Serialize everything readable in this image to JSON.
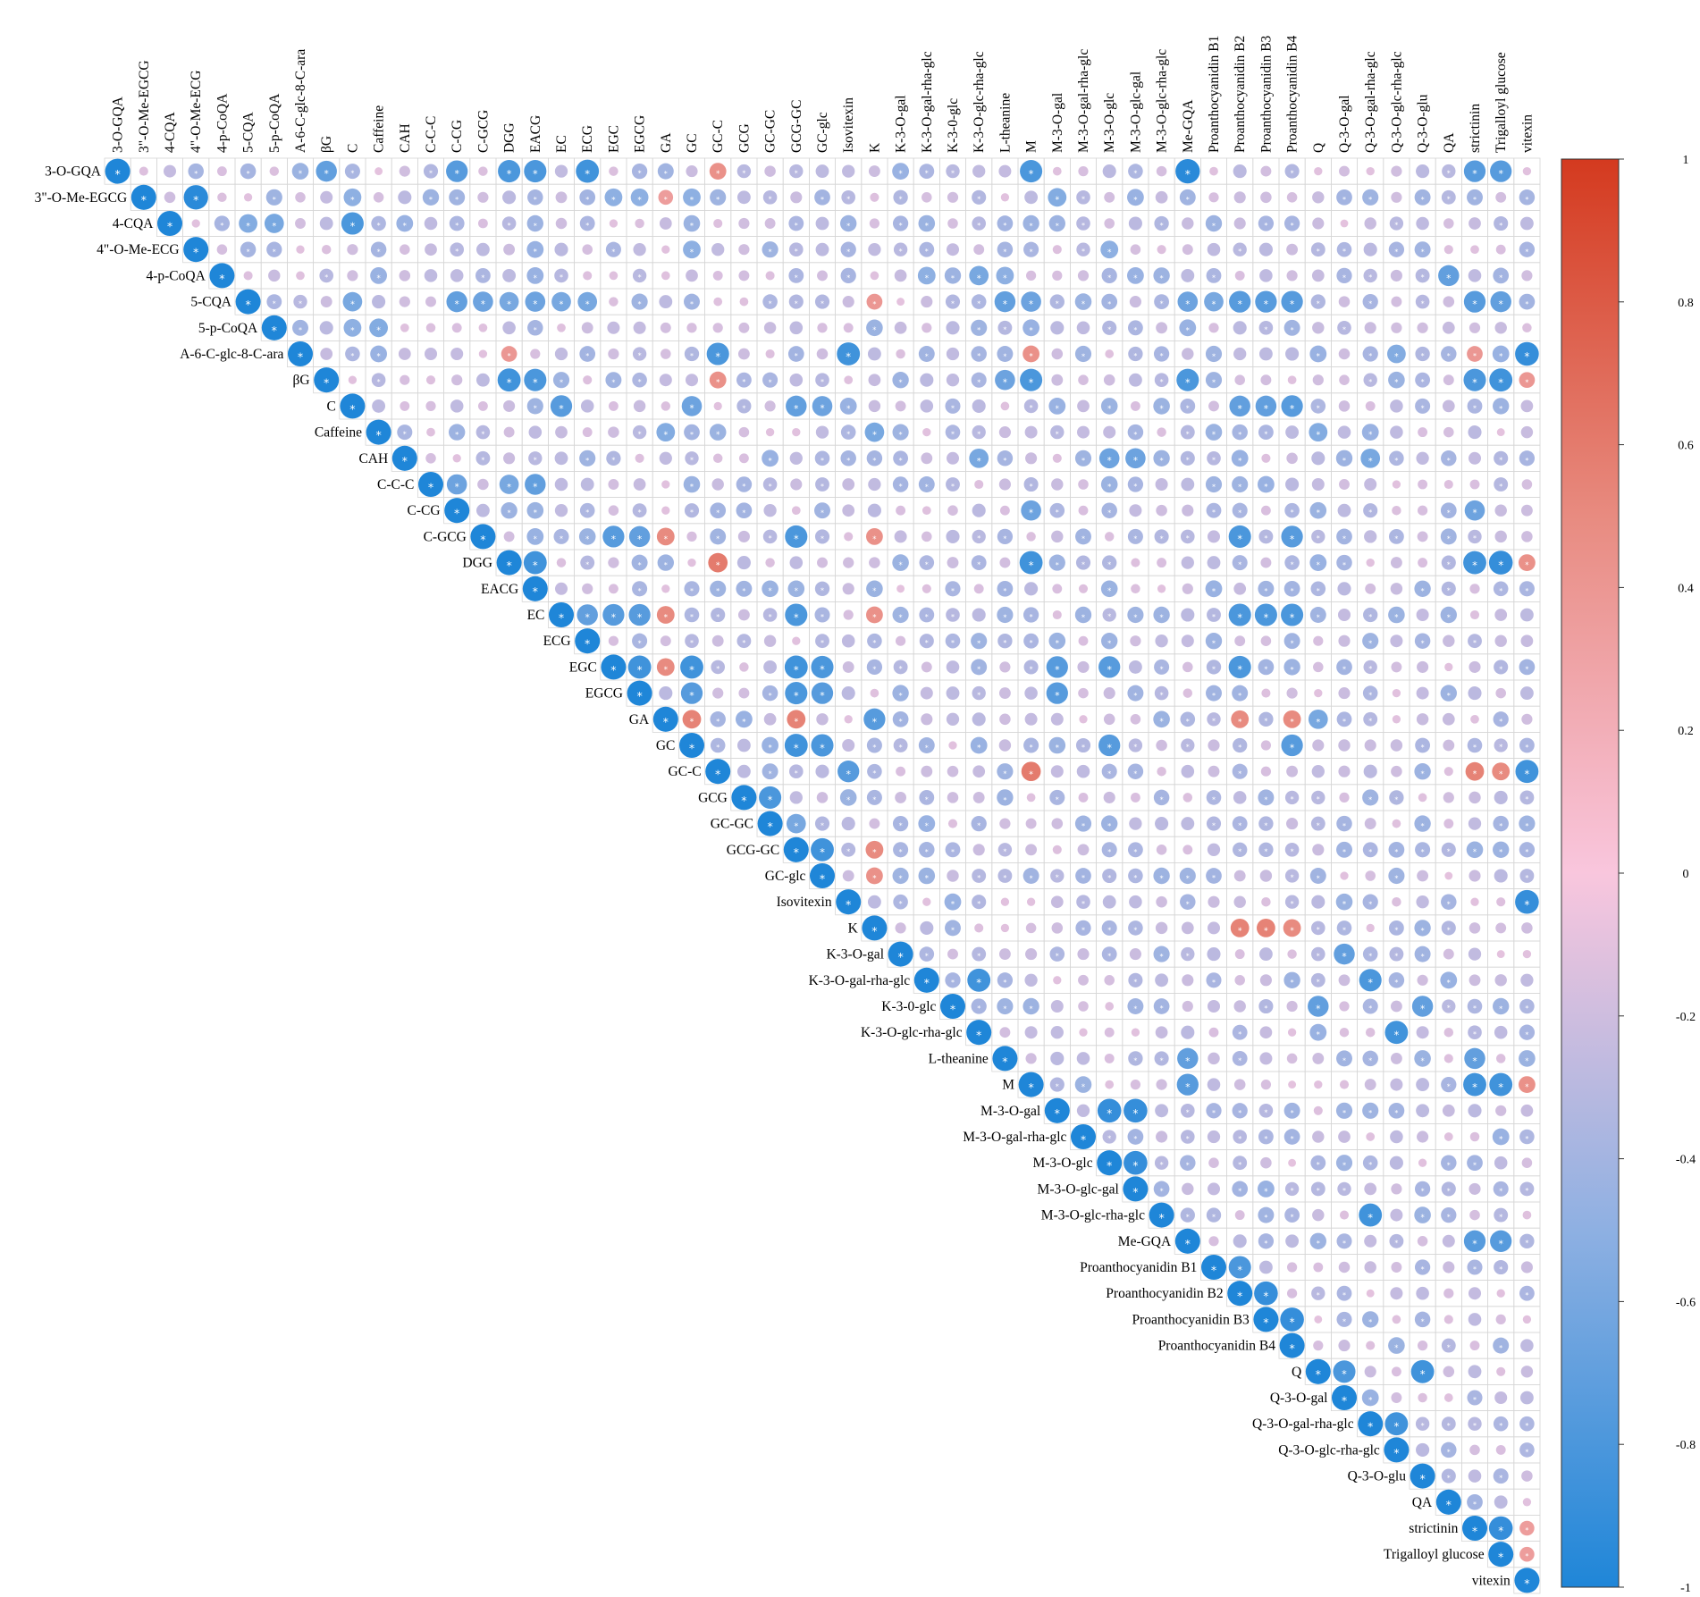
{
  "chart_data": {
    "type": "heatmap",
    "variant": "upper-triangle correlation circles",
    "variables": [
      "3-O-GQA",
      "3\"-O-Me-EGCG",
      "4-CQA",
      "4\"-O-Me-ECG",
      "4-p-CoQA",
      "5-CQA",
      "5-p-CoQA",
      "A-6-C-glc-8-C-ara",
      "βG",
      "C",
      "Caffeine",
      "CAH",
      "C-C-C",
      "C-CG",
      "C-GCG",
      "DGG",
      "EACG",
      "EC",
      "ECG",
      "EGC",
      "EGCG",
      "GA",
      "GC",
      "GC-C",
      "GCG",
      "GC-GC",
      "GCG-GC",
      "GC-glc",
      "Isovitexin",
      "K",
      "K-3-O-gal",
      "K-3-O-gal-rha-glc",
      "K-3-0-glc",
      "K-3-O-glc-rha-glc",
      "L-theanine",
      "M",
      "M-3-O-gal",
      "M-3-O-gal-rha-glc",
      "M-3-O-glc",
      "M-3-O-glc-gal",
      "M-3-O-glc-rha-glc",
      "Me-GQA",
      "Proanthocyanidin B1",
      "Proanthocyanidin B2",
      "Proanthocyanidin B3",
      "Proanthocyanidin B4",
      "Q",
      "Q-3-O-gal",
      "Q-3-O-gal-rha-glc",
      "Q-3-O-glc-rha-glc",
      "Q-3-O-glu",
      "QA",
      "strictinin",
      "Trigalloyl glucose",
      "vitexin"
    ],
    "colorbar": {
      "range": [
        -1,
        1
      ],
      "ticks": [
        "1",
        "0.8",
        "0.6",
        "0.4",
        "0.2",
        "0",
        "-0.2",
        "-0.4",
        "-0.6",
        "-0.8",
        "-1"
      ],
      "colors": [
        "#1f86d8",
        "#8eb0e2",
        "#f9c6dd",
        "#e88b80",
        "#d43a1f"
      ]
    },
    "significance_mark": "*",
    "diagonal_value": 1,
    "strong_pairs": [
      [
        "3-O-GQA",
        "C-CG",
        0.75
      ],
      [
        "3-O-GQA",
        "DGG",
        0.8
      ],
      [
        "3-O-GQA",
        "EACG",
        0.8
      ],
      [
        "3-O-GQA",
        "ECG",
        0.85
      ],
      [
        "3-O-GQA",
        "M",
        0.8
      ],
      [
        "3-O-GQA",
        "Me-GQA",
        0.95
      ],
      [
        "3-O-GQA",
        "strictinin",
        0.75
      ],
      [
        "3-O-GQA",
        "Trigalloyl glucose",
        0.75
      ],
      [
        "3-O-GQA",
        "βG",
        0.7
      ],
      [
        "3-O-GQA",
        "GC-C",
        -0.45
      ],
      [
        "3\"-O-Me-EGCG",
        "4\"-O-Me-ECG",
        0.95
      ],
      [
        "3\"-O-Me-EGCG",
        "C",
        0.5
      ],
      [
        "3\"-O-Me-EGCG",
        "EGC",
        0.5
      ],
      [
        "3\"-O-Me-EGCG",
        "EGCG",
        0.5
      ],
      [
        "3\"-O-Me-EGCG",
        "GC",
        0.5
      ],
      [
        "3\"-O-Me-EGCG",
        "M-3-O-gal",
        0.55
      ],
      [
        "3\"-O-Me-EGCG",
        "GA",
        -0.35
      ],
      [
        "4-CQA",
        "C",
        0.8
      ],
      [
        "4-CQA",
        "5-CQA",
        0.55
      ],
      [
        "4-CQA",
        "5-p-CoQA",
        0.6
      ],
      [
        "4\"-O-Me-ECG",
        "GC",
        0.5
      ],
      [
        "4\"-O-Me-ECG",
        "M-3-O-glc",
        0.5
      ],
      [
        "4-p-CoQA",
        "QA",
        0.7
      ],
      [
        "4-p-CoQA",
        "K-3-O-gal-rha-glc",
        0.5
      ],
      [
        "4-p-CoQA",
        "K-3-O-glc-rha-glc",
        0.6
      ],
      [
        "4-p-CoQA",
        "L-theanine",
        0.5
      ],
      [
        "5-CQA",
        "C",
        0.6
      ],
      [
        "5-CQA",
        "C-CG",
        0.7
      ],
      [
        "5-CQA",
        "C-GCG",
        0.65
      ],
      [
        "5-CQA",
        "DGG",
        0.6
      ],
      [
        "5-CQA",
        "EACG",
        0.65
      ],
      [
        "5-CQA",
        "EC",
        0.6
      ],
      [
        "5-CQA",
        "ECG",
        0.6
      ],
      [
        "5-CQA",
        "L-theanine",
        0.7
      ],
      [
        "5-CQA",
        "M",
        0.65
      ],
      [
        "5-CQA",
        "Me-GQA",
        0.65
      ],
      [
        "5-CQA",
        "Proanthocyanidin B1",
        0.6
      ],
      [
        "5-CQA",
        "Proanthocyanidin B2",
        0.75
      ],
      [
        "5-CQA",
        "Proanthocyanidin B3",
        0.75
      ],
      [
        "5-CQA",
        "Proanthocyanidin B4",
        0.75
      ],
      [
        "5-CQA",
        "strictinin",
        0.75
      ],
      [
        "5-CQA",
        "Trigalloyl glucose",
        0.7
      ],
      [
        "5-CQA",
        "K",
        -0.4
      ],
      [
        "5-p-CoQA",
        "C",
        0.5
      ],
      [
        "5-p-CoQA",
        "Caffeine",
        0.55
      ],
      [
        "A-6-C-glc-8-C-ara",
        "GC-C",
        0.8
      ],
      [
        "A-6-C-glc-8-C-ara",
        "Isovitexin",
        0.85
      ],
      [
        "A-6-C-glc-8-C-ara",
        "vitexin",
        0.9
      ],
      [
        "A-6-C-glc-8-C-ara",
        "Q-3-O-glc-rha-glc",
        0.55
      ],
      [
        "A-6-C-glc-8-C-ara",
        "M",
        -0.45
      ],
      [
        "A-6-C-glc-8-C-ara",
        "DGG",
        -0.4
      ],
      [
        "A-6-C-glc-8-C-ara",
        "strictinin",
        -0.4
      ],
      [
        "βG",
        "DGG",
        0.85
      ],
      [
        "βG",
        "EACG",
        0.8
      ],
      [
        "βG",
        "Me-GQA",
        0.8
      ],
      [
        "βG",
        "M",
        0.8
      ],
      [
        "βG",
        "L-theanine",
        0.65
      ],
      [
        "βG",
        "strictinin",
        0.8
      ],
      [
        "βG",
        "Trigalloyl glucose",
        0.85
      ],
      [
        "βG",
        "GC-C",
        -0.45
      ],
      [
        "βG",
        "vitexin",
        -0.4
      ],
      [
        "C",
        "EC",
        0.75
      ],
      [
        "C",
        "GC",
        0.65
      ],
      [
        "C",
        "GCG-GC",
        0.7
      ],
      [
        "C",
        "GC-glc",
        0.65
      ],
      [
        "C",
        "Proanthocyanidin B2",
        0.7
      ],
      [
        "C",
        "Proanthocyanidin B3",
        0.7
      ],
      [
        "C",
        "Proanthocyanidin B4",
        0.75
      ],
      [
        "Caffeine",
        "K",
        0.6
      ],
      [
        "Caffeine",
        "GA",
        0.55
      ],
      [
        "Caffeine",
        "Q",
        0.55
      ],
      [
        "CAH",
        "M-3-O-glc",
        0.65
      ],
      [
        "CAH",
        "M-3-O-glc-gal",
        0.65
      ],
      [
        "CAH",
        "Q-3-O-gal-rha-glc",
        0.6
      ],
      [
        "CAH",
        "K-3-O-glc-rha-glc",
        0.6
      ],
      [
        "C-C-C",
        "C-CG",
        0.65
      ],
      [
        "C-C-C",
        "EACG",
        0.7
      ],
      [
        "C-C-C",
        "DGG",
        0.6
      ],
      [
        "C-CG",
        "M",
        0.65
      ],
      [
        "C-CG",
        "strictinin",
        0.65
      ],
      [
        "C-GCG",
        "EGC",
        0.75
      ],
      [
        "C-GCG",
        "EGCG",
        0.7
      ],
      [
        "C-GCG",
        "GCG-GC",
        0.8
      ],
      [
        "C-GCG",
        "Proanthocyanidin B2",
        0.8
      ],
      [
        "C-GCG",
        "Proanthocyanidin B4",
        0.75
      ],
      [
        "C-GCG",
        "GA",
        -0.5
      ],
      [
        "C-GCG",
        "K",
        -0.45
      ],
      [
        "DGG",
        "EACG",
        0.85
      ],
      [
        "DGG",
        "M",
        0.85
      ],
      [
        "DGG",
        "strictinin",
        0.85
      ],
      [
        "DGG",
        "Trigalloyl glucose",
        0.9
      ],
      [
        "DGG",
        "GC-C",
        -0.6
      ],
      [
        "DGG",
        "vitexin",
        -0.45
      ],
      [
        "EC",
        "ECG",
        0.7
      ],
      [
        "EC",
        "EGC",
        0.75
      ],
      [
        "EC",
        "EGCG",
        0.75
      ],
      [
        "EC",
        "GCG-GC",
        0.8
      ],
      [
        "EC",
        "Proanthocyanidin B2",
        0.8
      ],
      [
        "EC",
        "Proanthocyanidin B3",
        0.8
      ],
      [
        "EC",
        "Proanthocyanidin B4",
        0.8
      ],
      [
        "EC",
        "GA",
        -0.5
      ],
      [
        "EC",
        "K",
        -0.45
      ],
      [
        "EGC",
        "EGCG",
        0.85
      ],
      [
        "EGC",
        "GC",
        0.85
      ],
      [
        "EGC",
        "GCG-GC",
        0.85
      ],
      [
        "EGC",
        "GC-glc",
        0.8
      ],
      [
        "EGC",
        "M-3-O-gal",
        0.75
      ],
      [
        "EGC",
        "M-3-O-glc",
        0.75
      ],
      [
        "EGC",
        "Proanthocyanidin B2",
        0.8
      ],
      [
        "EGC",
        "GA",
        -0.5
      ],
      [
        "EGCG",
        "GC",
        0.75
      ],
      [
        "EGCG",
        "GCG-GC",
        0.8
      ],
      [
        "EGCG",
        "GC-glc",
        0.75
      ],
      [
        "EGCG",
        "M-3-O-gal",
        0.75
      ],
      [
        "GA",
        "K",
        0.75
      ],
      [
        "GA",
        "Q",
        0.6
      ],
      [
        "GA",
        "GC",
        -0.55
      ],
      [
        "GA",
        "GCG-GC",
        -0.55
      ],
      [
        "GA",
        "Proanthocyanidin B2",
        -0.5
      ],
      [
        "GA",
        "Proanthocyanidin B4",
        -0.5
      ],
      [
        "GC",
        "GCG-GC",
        0.85
      ],
      [
        "GC",
        "GC-glc",
        0.8
      ],
      [
        "GC",
        "M-3-O-glc",
        0.75
      ],
      [
        "GC",
        "Proanthocyanidin B4",
        0.75
      ],
      [
        "GC-C",
        "vitexin",
        0.85
      ],
      [
        "GC-C",
        "Isovitexin",
        0.75
      ],
      [
        "GC-C",
        "M",
        -0.6
      ],
      [
        "GC-C",
        "strictinin",
        -0.55
      ],
      [
        "GC-C",
        "Trigalloyl glucose",
        -0.5
      ],
      [
        "GCG",
        "GC-GC",
        0.8
      ],
      [
        "GC-GC",
        "GCG-GC",
        0.6
      ],
      [
        "GCG-GC",
        "GC-glc",
        0.85
      ],
      [
        "GCG-GC",
        "K",
        -0.5
      ],
      [
        "GC-glc",
        "K",
        -0.45
      ],
      [
        "Isovitexin",
        "vitexin",
        0.9
      ],
      [
        "K",
        "Proanthocyanidin B2",
        -0.55
      ],
      [
        "K",
        "Proanthocyanidin B3",
        -0.55
      ],
      [
        "K",
        "Proanthocyanidin B4",
        -0.5
      ],
      [
        "K-3-O-gal",
        "Q-3-O-gal",
        0.7
      ],
      [
        "K-3-O-gal-rha-glc",
        "K-3-O-glc-rha-glc",
        0.85
      ],
      [
        "K-3-O-gal-rha-glc",
        "Q-3-O-gal-rha-glc",
        0.8
      ],
      [
        "K-3-0-glc",
        "Q",
        0.7
      ],
      [
        "K-3-0-glc",
        "Q-3-O-glu",
        0.7
      ],
      [
        "K-3-O-glc-rha-glc",
        "Q-3-O-glc-rha-glc",
        0.85
      ],
      [
        "L-theanine",
        "Me-GQA",
        0.7
      ],
      [
        "L-theanine",
        "strictinin",
        0.7
      ],
      [
        "M",
        "Me-GQA",
        0.75
      ],
      [
        "M",
        "strictinin",
        0.85
      ],
      [
        "M",
        "Trigalloyl glucose",
        0.85
      ],
      [
        "M",
        "vitexin",
        -0.45
      ],
      [
        "M-3-O-gal",
        "M-3-O-glc",
        0.9
      ],
      [
        "M-3-O-gal",
        "M-3-O-glc-gal",
        0.9
      ],
      [
        "M-3-O-glc",
        "M-3-O-glc-gal",
        0.9
      ],
      [
        "M-3-O-glc-rha-glc",
        "Q-3-O-gal-rha-glc",
        0.85
      ],
      [
        "Me-GQA",
        "strictinin",
        0.75
      ],
      [
        "Me-GQA",
        "Trigalloyl glucose",
        0.75
      ],
      [
        "Proanthocyanidin B1",
        "Proanthocyanidin B2",
        0.8
      ],
      [
        "Proanthocyanidin B2",
        "Proanthocyanidin B3",
        0.9
      ],
      [
        "Proanthocyanidin B3",
        "Proanthocyanidin B4",
        0.9
      ],
      [
        "Q",
        "Q-3-O-gal",
        0.8
      ],
      [
        "Q",
        "Q-3-O-glu",
        0.85
      ],
      [
        "Q-3-O-gal-rha-glc",
        "Q-3-O-glc-rha-glc",
        0.85
      ],
      [
        "strictinin",
        "Trigalloyl glucose",
        0.9
      ],
      [
        "strictinin",
        "vitexin",
        -0.35
      ],
      [
        "Trigalloyl glucose",
        "vitexin",
        -0.35
      ]
    ],
    "other_cells": "weak positive correlations (about 0.1 to 0.45), small circles"
  }
}
